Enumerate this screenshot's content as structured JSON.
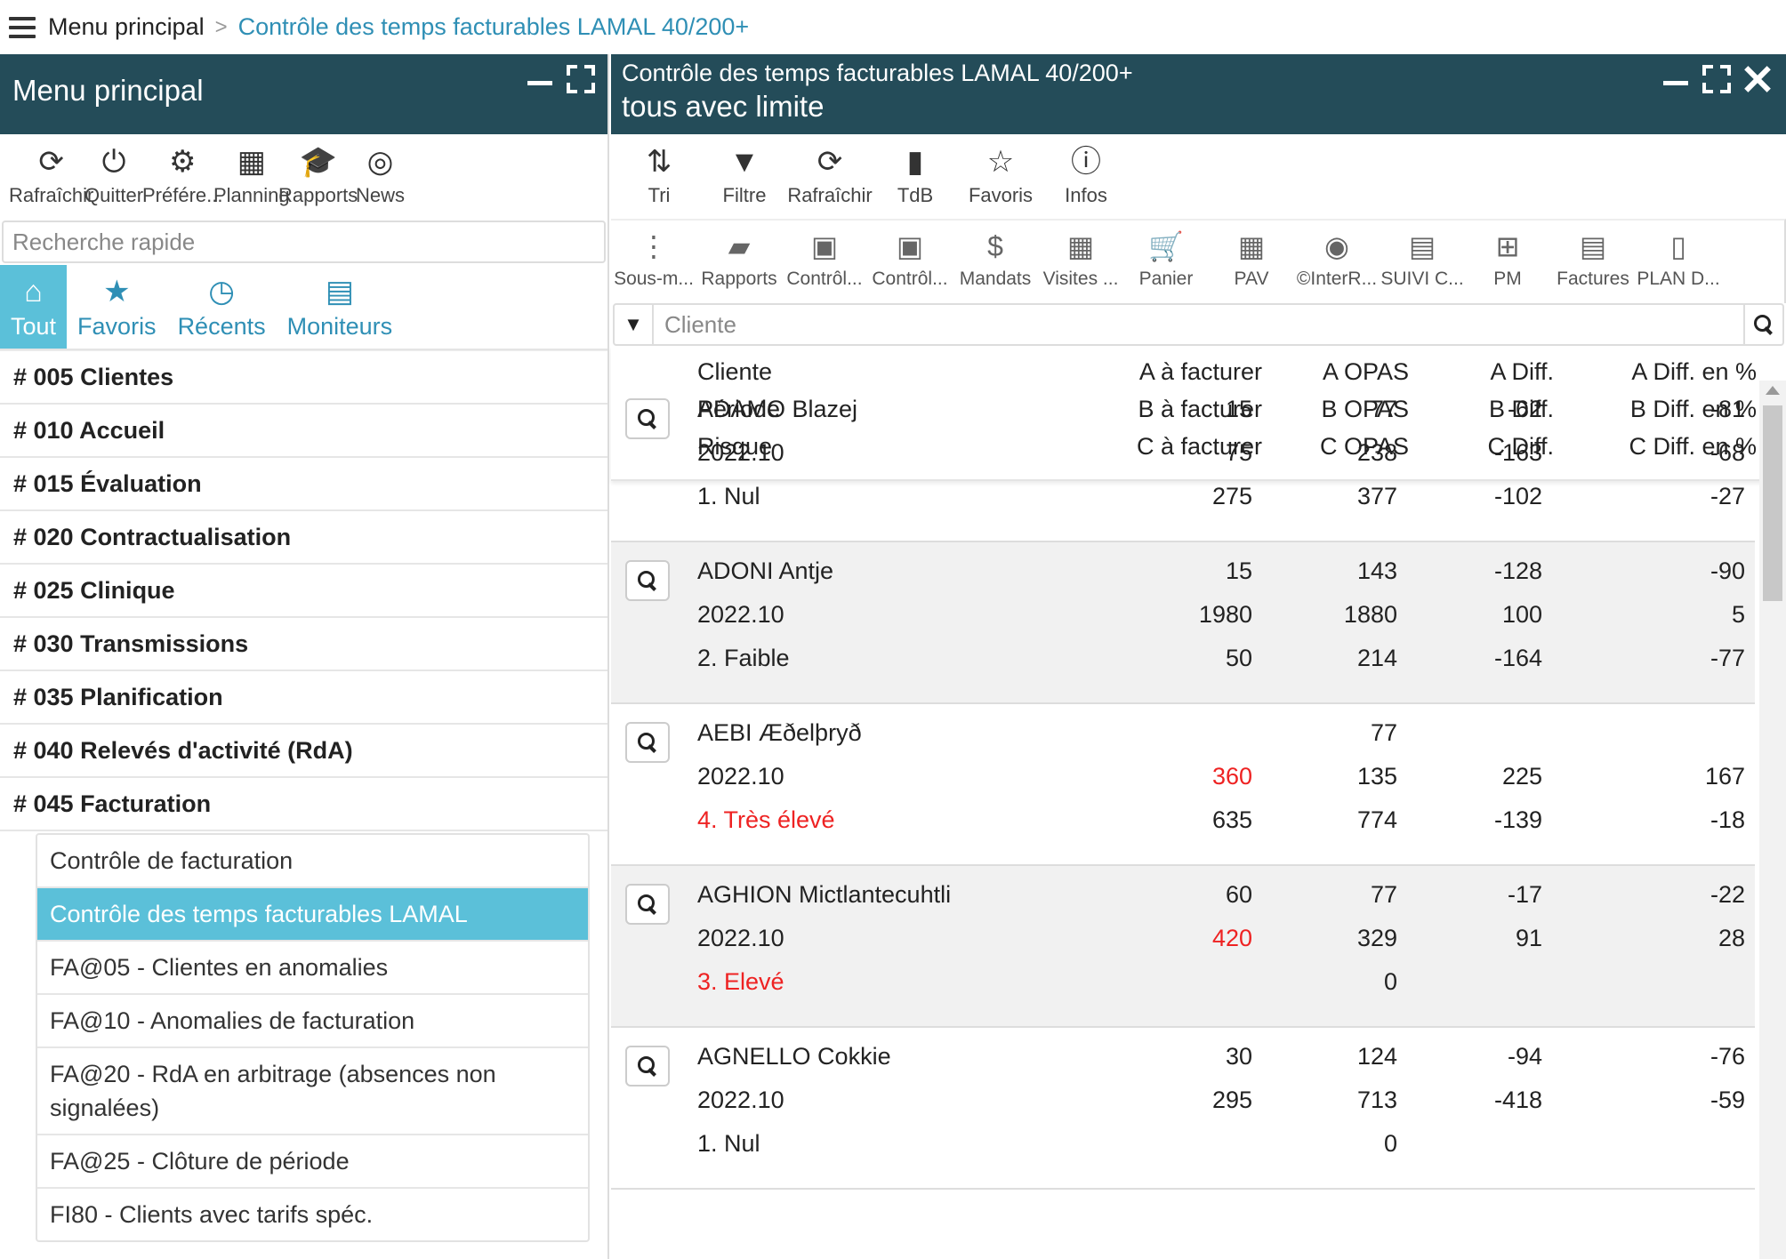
{
  "breadcrumb": {
    "root": "Menu principal",
    "sep": ">",
    "current": "Contrôle des temps facturables LAMAL 40/200+"
  },
  "left": {
    "title": "Menu principal",
    "toolbar": [
      {
        "label": "Rafraîchir",
        "icon": "refresh-icon"
      },
      {
        "label": "Quitter",
        "icon": "power-icon"
      },
      {
        "label": "Préfére...",
        "icon": "gear-icon"
      },
      {
        "label": "Planning",
        "icon": "calendar-icon"
      },
      {
        "label": "Rapports",
        "icon": "graduation-cap-icon"
      },
      {
        "label": "News",
        "icon": "mls-icon"
      }
    ],
    "search_placeholder": "Recherche rapide",
    "tabs": [
      {
        "label": "Tout"
      },
      {
        "label": "Favoris"
      },
      {
        "label": "Récents"
      },
      {
        "label": "Moniteurs"
      }
    ],
    "menu": [
      "# 005 Clientes",
      "# 010 Accueil",
      "# 015 Évaluation",
      "# 020 Contractualisation",
      "# 025 Clinique",
      "# 030 Transmissions",
      "# 035 Planification",
      "# 040 Relevés d'activité (RdA)",
      "# 045 Facturation"
    ],
    "submenu": [
      "Contrôle de facturation",
      "Contrôle des temps facturables LAMAL",
      "FA@05 - Clientes en anomalies",
      "FA@10 - Anomalies de facturation",
      "FA@20 - RdA en arbitrage (absences non signalées)",
      "FA@25 - Clôture de période",
      "FI80 - Clients avec tarifs spéc."
    ]
  },
  "right": {
    "title1": "Contrôle des temps facturables LAMAL 40/200+",
    "title2": "tous avec limite",
    "toolbar": [
      {
        "label": "Tri",
        "icon": "sort-icon"
      },
      {
        "label": "Filtre",
        "icon": "filter-icon"
      },
      {
        "label": "Rafraîchir",
        "icon": "refresh-icon"
      },
      {
        "label": "TdB",
        "icon": "bar-chart-icon"
      },
      {
        "label": "Favoris",
        "icon": "star-icon"
      },
      {
        "label": "Infos",
        "icon": "info-icon"
      }
    ],
    "toolbar2": [
      {
        "label": "Sous-m...",
        "icon": "more-vertical-icon"
      },
      {
        "label": "Rapports",
        "icon": "folder-open-icon"
      },
      {
        "label": "Contrôl...",
        "icon": "briefcase-icon"
      },
      {
        "label": "Contrôl...",
        "icon": "briefcase-icon"
      },
      {
        "label": "Mandats",
        "icon": "dollar-icon"
      },
      {
        "label": "Visites ...",
        "icon": "calendar-icon"
      },
      {
        "label": "Panier",
        "icon": "cart-icon"
      },
      {
        "label": "PAV",
        "icon": "grid-icon"
      },
      {
        "label": "©InterR...",
        "icon": "eye-icon"
      },
      {
        "label": "SUIVI C...",
        "icon": "document-chart-icon"
      },
      {
        "label": "PM",
        "icon": "calendar-plus-icon"
      },
      {
        "label": "Factures",
        "icon": "invoice-icon"
      },
      {
        "label": "PLAN D...",
        "icon": "file-icon"
      }
    ],
    "filter_placeholder": "Cliente",
    "headers": {
      "c1": [
        "Cliente",
        "Période",
        "Risque"
      ],
      "c2": [
        "A à facturer",
        "B à facturer",
        "C à facturer"
      ],
      "c3": [
        "A OPAS",
        "B OPAS",
        "C OPAS"
      ],
      "c4": [
        "A Diff.",
        "B Diff.",
        "C Diff."
      ],
      "c5": [
        "A Diff. en %",
        "B Diff. en %",
        "C Diff. en %"
      ]
    },
    "rows": [
      {
        "name": "ADAMO Blazej",
        "period": "2022.10",
        "risk": "1. Nul",
        "risk_red": false,
        "a": [
          "15",
          "77",
          "-62",
          "-81"
        ],
        "b": [
          "75",
          "238",
          "-163",
          "-68"
        ],
        "c": [
          "275",
          "377",
          "-102",
          "-27"
        ],
        "b_red": false
      },
      {
        "name": "ADONI Antje",
        "period": "2022.10",
        "risk": "2. Faible",
        "risk_red": false,
        "a": [
          "15",
          "143",
          "-128",
          "-90"
        ],
        "b": [
          "1980",
          "1880",
          "100",
          "5"
        ],
        "c": [
          "50",
          "214",
          "-164",
          "-77"
        ],
        "b_red": false
      },
      {
        "name": "AEBI Æðelþryð",
        "period": "2022.10",
        "risk": "4. Très élevé",
        "risk_red": true,
        "a": [
          "",
          "77",
          "",
          ""
        ],
        "b": [
          "360",
          "135",
          "225",
          "167"
        ],
        "c": [
          "635",
          "774",
          "-139",
          "-18"
        ],
        "b_red": true
      },
      {
        "name": "AGHION Mictlantecuhtli",
        "period": "2022.10",
        "risk": "3. Elevé",
        "risk_red": true,
        "a": [
          "60",
          "77",
          "-17",
          "-22"
        ],
        "b": [
          "420",
          "329",
          "91",
          "28"
        ],
        "c": [
          "",
          "0",
          "",
          ""
        ],
        "b_red": true
      },
      {
        "name": "AGNELLO Cokkie",
        "period": "2022.10",
        "risk": "1. Nul",
        "risk_red": false,
        "a": [
          "30",
          "124",
          "-94",
          "-76"
        ],
        "b": [
          "295",
          "713",
          "-418",
          "-59"
        ],
        "c": [
          "",
          "0",
          "",
          ""
        ],
        "b_red": false
      }
    ]
  }
}
